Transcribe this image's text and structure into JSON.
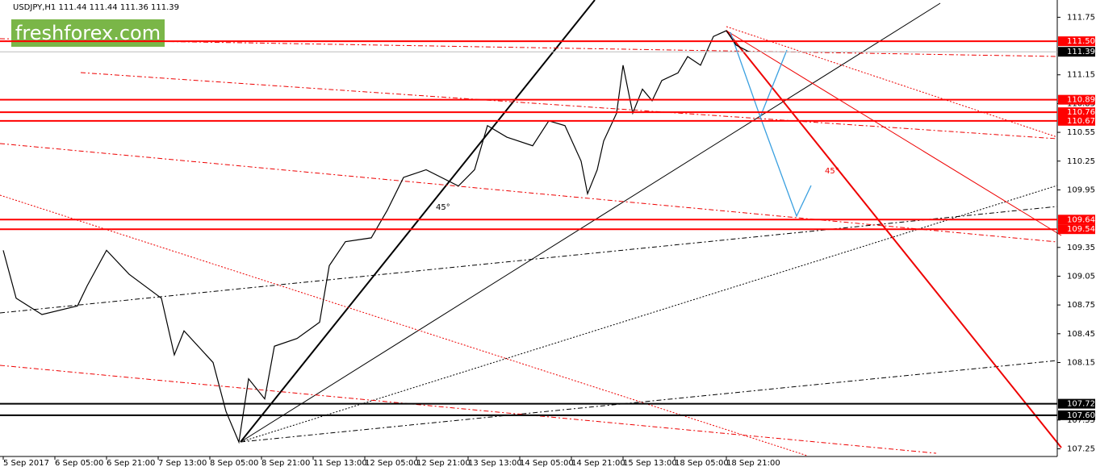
{
  "chart_data": {
    "type": "line",
    "title": "USDJPY,H1  111.44 111.44 111.36 111.39",
    "watermark": "freshforex.com",
    "color": "#000000",
    "x": [
      0,
      4,
      12,
      23,
      26,
      32,
      39,
      49,
      53,
      56,
      65,
      69,
      73,
      76,
      81,
      84,
      91,
      98,
      101,
      106,
      114,
      119,
      124,
      131,
      141,
      146,
      150,
      156,
      164,
      169,
      174,
      179,
      181,
      184,
      186,
      190,
      192,
      195,
      198,
      201,
      204,
      209,
      212,
      216,
      220,
      224,
      227,
      231
    ],
    "values": [
      109.32,
      108.82,
      108.65,
      108.74,
      108.95,
      109.32,
      109.07,
      108.82,
      108.23,
      108.48,
      108.15,
      107.64,
      107.32,
      107.98,
      107.77,
      108.32,
      108.4,
      108.57,
      109.16,
      109.41,
      109.45,
      109.74,
      110.08,
      110.16,
      109.99,
      110.16,
      110.62,
      110.5,
      110.41,
      110.67,
      110.62,
      110.25,
      109.91,
      110.16,
      110.46,
      110.75,
      111.25,
      110.75,
      111.0,
      110.88,
      111.09,
      111.17,
      111.34,
      111.25,
      111.55,
      111.61,
      111.46,
      111.39
    ],
    "xlim": [
      -1,
      326.5
    ],
    "ylim": [
      107.17,
      111.93
    ],
    "xticks": [
      {
        "value": 0,
        "label": "5 Sep 2017"
      },
      {
        "value": 16,
        "label": "6 Sep 05:00"
      },
      {
        "value": 32,
        "label": "6 Sep 21:00"
      },
      {
        "value": 48,
        "label": "7 Sep 13:00"
      },
      {
        "value": 64,
        "label": "8 Sep 05:00"
      },
      {
        "value": 80,
        "label": "8 Sep 21:00"
      },
      {
        "value": 96,
        "label": "11 Sep 13:00"
      },
      {
        "value": 112,
        "label": "12 Sep 05:00"
      },
      {
        "value": 128,
        "label": "12 Sep 21:00"
      },
      {
        "value": 144,
        "label": "13 Sep 13:00"
      },
      {
        "value": 160,
        "label": "14 Sep 05:00"
      },
      {
        "value": 176,
        "label": "14 Sep 21:00"
      },
      {
        "value": 192,
        "label": "15 Sep 13:00"
      },
      {
        "value": 208,
        "label": "18 Sep 05:00"
      },
      {
        "value": 224,
        "label": "18 Sep 21:00"
      }
    ],
    "yticks": [
      111.75,
      111.15,
      110.85,
      110.55,
      110.25,
      109.95,
      109.35,
      109.05,
      108.75,
      108.45,
      108.15,
      107.55,
      107.25
    ],
    "levels": [
      {
        "value": 111.5,
        "label": "111.50",
        "color": "#ff0000"
      },
      {
        "value": 111.39,
        "label": "111.39",
        "color": "#000000"
      },
      {
        "value": 110.89,
        "label": "110.89",
        "color": "#ff0000"
      },
      {
        "value": 110.76,
        "label": "110.76",
        "color": "#ff0000"
      },
      {
        "value": 110.67,
        "label": "110.67",
        "color": "#ff0000"
      },
      {
        "value": 109.64,
        "label": "109.64",
        "color": "#ff0000"
      },
      {
        "value": 109.54,
        "label": "109.54",
        "color": "#ff0000"
      },
      {
        "value": 107.72,
        "label": "107.72",
        "color": "#000000"
      },
      {
        "value": 107.6,
        "label": "107.60",
        "color": "#000000"
      }
    ],
    "annotations": [
      "45°",
      "45°"
    ]
  }
}
